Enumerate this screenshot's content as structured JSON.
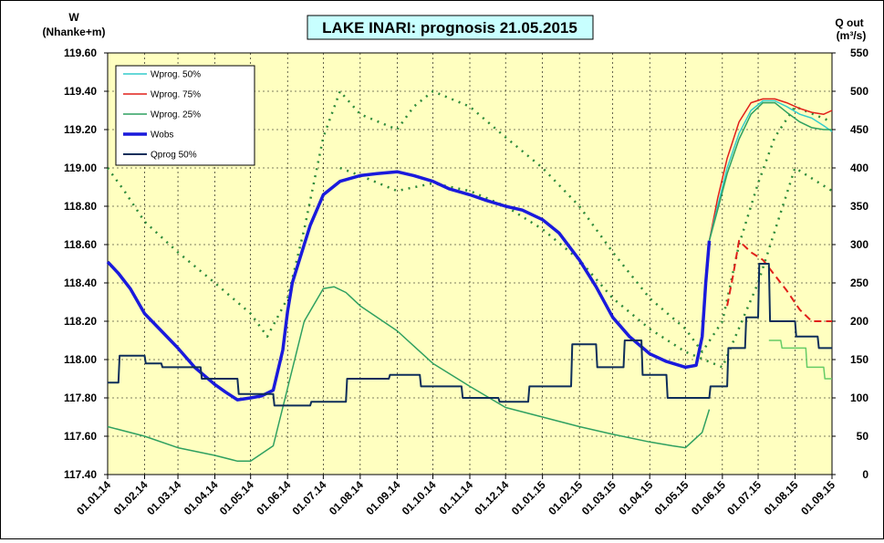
{
  "chart_data": {
    "type": "line",
    "title": "LAKE INARI: prognosis 21.05.2015",
    "left_axis": {
      "label_line1": "W",
      "label_line2": "(Nhanke+m)",
      "min": 117.4,
      "max": 119.6,
      "step": 0.2,
      "ticks": [
        "117.40",
        "117.60",
        "117.80",
        "118.00",
        "118.20",
        "118.40",
        "118.60",
        "118.80",
        "119.00",
        "119.20",
        "119.40",
        "119.60"
      ]
    },
    "right_axis": {
      "label_line1": "Q out",
      "label_line2": "(m³/s)",
      "min": 0,
      "max": 550,
      "step": 50,
      "ticks": [
        "0",
        "50",
        "100",
        "150",
        "200",
        "250",
        "300",
        "350",
        "400",
        "450",
        "500",
        "550"
      ]
    },
    "x_axis": {
      "start": "2014-01-01",
      "end": "2015-09-01",
      "ticks": [
        "01.01.14",
        "01.02.14",
        "01.03.14",
        "01.04.14",
        "01.05.14",
        "01.06.14",
        "01.07.14",
        "01.08.14",
        "01.09.14",
        "01.10.14",
        "01.11.14",
        "01.12.14",
        "01.01.15",
        "01.02.15",
        "01.03.15",
        "01.04.15",
        "01.05.15",
        "01.06.15",
        "01.07.15",
        "01.08.15",
        "01.09.15"
      ]
    },
    "grid": true,
    "legend_position": "top-left",
    "legend": [
      {
        "name": "Wprog. 50%",
        "color": "#33cccc",
        "width": 1.5,
        "dash": ""
      },
      {
        "name": "Wprog. 75%",
        "color": "#e0201a",
        "width": 1.5,
        "dash": ""
      },
      {
        "name": "Wprog. 25%",
        "color": "#2fa060",
        "width": 1.5,
        "dash": ""
      },
      {
        "name": "Wobs",
        "color": "#1a1adc",
        "width": 3.5,
        "dash": ""
      },
      {
        "name": "Qprog 50%",
        "color": "#0e2e5a",
        "width": 2,
        "dash": ""
      }
    ],
    "series": [
      {
        "name": "Wobs",
        "axis": "left",
        "color": "#1a1adc",
        "width": 3.5,
        "dash": "",
        "x": [
          "2014-01-01",
          "2014-01-10",
          "2014-01-20",
          "2014-02-01",
          "2014-02-15",
          "2014-03-01",
          "2014-03-15",
          "2014-04-01",
          "2014-04-10",
          "2014-04-20",
          "2014-05-01",
          "2014-05-10",
          "2014-05-20",
          "2014-05-28",
          "2014-06-01",
          "2014-06-05",
          "2014-06-10",
          "2014-06-20",
          "2014-07-01",
          "2014-07-15",
          "2014-08-01",
          "2014-08-15",
          "2014-09-01",
          "2014-09-15",
          "2014-10-01",
          "2014-10-15",
          "2014-11-01",
          "2014-11-15",
          "2014-12-01",
          "2014-12-15",
          "2015-01-01",
          "2015-01-15",
          "2015-02-01",
          "2015-02-15",
          "2015-03-01",
          "2015-03-15",
          "2015-04-01",
          "2015-04-15",
          "2015-05-01",
          "2015-05-10",
          "2015-05-15",
          "2015-05-18",
          "2015-05-21"
        ],
        "y": [
          118.51,
          118.45,
          118.37,
          118.24,
          118.15,
          118.06,
          117.96,
          117.87,
          117.83,
          117.79,
          117.8,
          117.81,
          117.84,
          118.05,
          118.25,
          118.4,
          118.5,
          118.7,
          118.86,
          118.93,
          118.96,
          118.97,
          118.98,
          118.96,
          118.93,
          118.89,
          118.86,
          118.83,
          118.8,
          118.78,
          118.73,
          118.66,
          118.52,
          118.38,
          118.22,
          118.12,
          118.03,
          117.99,
          117.96,
          117.97,
          118.12,
          118.4,
          118.62
        ]
      },
      {
        "name": "Wprog. 50%",
        "axis": "left",
        "color": "#33cccc",
        "width": 1.5,
        "dash": "",
        "x": [
          "2015-05-21",
          "2015-05-28",
          "2015-06-05",
          "2015-06-15",
          "2015-06-25",
          "2015-07-05",
          "2015-07-15",
          "2015-07-25",
          "2015-08-05",
          "2015-08-15",
          "2015-08-25",
          "2015-09-01"
        ],
        "y": [
          118.62,
          118.8,
          119.0,
          119.18,
          119.3,
          119.35,
          119.35,
          119.32,
          119.28,
          119.26,
          119.22,
          119.19
        ]
      },
      {
        "name": "Wprog. 75%",
        "axis": "left",
        "color": "#e0201a",
        "width": 1.5,
        "dash": "",
        "x": [
          "2015-05-21",
          "2015-05-28",
          "2015-06-05",
          "2015-06-15",
          "2015-06-25",
          "2015-07-05",
          "2015-07-15",
          "2015-07-25",
          "2015-08-05",
          "2015-08-15",
          "2015-08-25",
          "2015-09-01"
        ],
        "y": [
          118.62,
          118.84,
          119.05,
          119.24,
          119.34,
          119.36,
          119.36,
          119.34,
          119.31,
          119.29,
          119.28,
          119.3
        ]
      },
      {
        "name": "Wprog. 25%",
        "axis": "left",
        "color": "#2fa060",
        "width": 1.5,
        "dash": "",
        "x": [
          "2015-05-21",
          "2015-05-28",
          "2015-06-05",
          "2015-06-15",
          "2015-06-25",
          "2015-07-05",
          "2015-07-15",
          "2015-07-25",
          "2015-08-05",
          "2015-08-15",
          "2015-08-25",
          "2015-09-01"
        ],
        "y": [
          118.62,
          118.78,
          118.97,
          119.15,
          119.28,
          119.34,
          119.34,
          119.29,
          119.24,
          119.21,
          119.2,
          119.2
        ]
      },
      {
        "name": "Wobs light",
        "axis": "left",
        "color": "#2fa060",
        "width": 1.5,
        "dash": "",
        "x": [
          "2014-01-01",
          "2014-02-01",
          "2014-03-01",
          "2014-04-01",
          "2014-04-20",
          "2014-05-01",
          "2014-05-20",
          "2014-06-01",
          "2014-06-15",
          "2014-07-01",
          "2014-07-10",
          "2014-07-20",
          "2014-08-01",
          "2014-09-01",
          "2014-10-01",
          "2014-11-01",
          "2014-12-01",
          "2015-01-01",
          "2015-02-01",
          "2015-03-01",
          "2015-04-01",
          "2015-04-20",
          "2015-05-01",
          "2015-05-15",
          "2015-05-21"
        ],
        "y": [
          117.65,
          117.6,
          117.54,
          117.5,
          117.47,
          117.47,
          117.55,
          117.85,
          118.2,
          118.37,
          118.38,
          118.35,
          118.28,
          118.15,
          117.98,
          117.86,
          117.75,
          117.7,
          117.65,
          117.61,
          117.57,
          117.55,
          117.54,
          117.62,
          117.74
        ]
      },
      {
        "name": "Q dotted",
        "axis": "right",
        "color": "#2d8a3a",
        "width": 2.5,
        "dash": "2 6",
        "x": [
          "2014-01-01",
          "2014-01-15",
          "2014-02-01",
          "2014-03-01",
          "2014-04-01",
          "2014-05-01",
          "2014-05-15",
          "2014-06-01",
          "2014-06-15",
          "2014-07-01",
          "2014-07-15",
          "2014-08-01",
          "2014-09-01",
          "2014-09-15",
          "2014-10-01",
          "2014-11-01",
          "2014-12-01",
          "2015-01-01",
          "2015-02-01",
          "2015-03-01",
          "2015-04-01",
          "2015-05-01",
          "2015-05-15",
          "2015-06-01",
          "2015-06-15",
          "2015-07-01",
          "2015-07-15",
          "2015-08-01",
          "2015-09-01"
        ],
        "y": [
          400,
          370,
          330,
          290,
          250,
          210,
          180,
          230,
          320,
          440,
          500,
          470,
          450,
          480,
          500,
          480,
          440,
          400,
          350,
          290,
          230,
          190,
          160,
          200,
          300,
          380,
          440,
          480,
          460
        ]
      },
      {
        "name": "Q dotted 2",
        "axis": "right",
        "color": "#2d8a3a",
        "width": 2.5,
        "dash": "2 6",
        "x": [
          "2014-07-15",
          "2014-08-01",
          "2014-09-01",
          "2014-10-01",
          "2014-11-01",
          "2014-12-01",
          "2015-01-01",
          "2015-02-01",
          "2015-03-01",
          "2015-04-01",
          "2015-05-01",
          "2015-06-01",
          "2015-07-01",
          "2015-08-01",
          "2015-09-01"
        ],
        "y": [
          400,
          390,
          370,
          380,
          370,
          350,
          320,
          280,
          230,
          190,
          160,
          140,
          250,
          400,
          370
        ]
      },
      {
        "name": "Qprog 50%",
        "axis": "right",
        "color": "#0e2e5a",
        "width": 2,
        "dash": "",
        "x": [
          "2014-01-01",
          "2014-01-10",
          "2014-01-11",
          "2014-02-01",
          "2014-02-02",
          "2014-02-15",
          "2014-02-16",
          "2014-03-20",
          "2014-03-21",
          "2014-04-20",
          "2014-04-21",
          "2014-05-20",
          "2014-05-21",
          "2014-06-20",
          "2014-06-21",
          "2014-07-20",
          "2014-07-21",
          "2014-08-25",
          "2014-08-26",
          "2014-09-20",
          "2014-09-21",
          "2014-10-25",
          "2014-10-26",
          "2014-11-25",
          "2014-11-26",
          "2014-12-20",
          "2014-12-21",
          "2015-01-25",
          "2015-01-26",
          "2015-02-15",
          "2015-02-16",
          "2015-03-10",
          "2015-03-11",
          "2015-03-25",
          "2015-03-26",
          "2015-04-15",
          "2015-04-16",
          "2015-05-21",
          "2015-05-22",
          "2015-06-05",
          "2015-06-06",
          "2015-06-20",
          "2015-06-21",
          "2015-07-01",
          "2015-07-02",
          "2015-07-10",
          "2015-07-11",
          "2015-08-01",
          "2015-08-02",
          "2015-08-20",
          "2015-08-21",
          "2015-09-01"
        ],
        "y": [
          120,
          120,
          155,
          155,
          145,
          145,
          140,
          140,
          125,
          125,
          105,
          105,
          90,
          90,
          95,
          95,
          125,
          125,
          130,
          130,
          115,
          115,
          100,
          100,
          95,
          95,
          115,
          115,
          170,
          170,
          140,
          140,
          175,
          175,
          130,
          130,
          100,
          100,
          115,
          115,
          165,
          165,
          205,
          205,
          275,
          275,
          200,
          200,
          180,
          180,
          165,
          165
        ]
      },
      {
        "name": "Q red dashed",
        "axis": "right",
        "color": "#e0201a",
        "width": 2,
        "dash": "8 5",
        "x": [
          "2015-06-05",
          "2015-06-10",
          "2015-06-15",
          "2015-06-25",
          "2015-07-05",
          "2015-07-15",
          "2015-07-25",
          "2015-08-05",
          "2015-08-15",
          "2015-09-01"
        ],
        "y": [
          220,
          260,
          305,
          290,
          280,
          260,
          240,
          215,
          200,
          200
        ]
      },
      {
        "name": "Q light green",
        "axis": "right",
        "color": "#66cc66",
        "width": 1.5,
        "dash": "",
        "x": [
          "2015-07-10",
          "2015-07-20",
          "2015-07-21",
          "2015-08-10",
          "2015-08-11",
          "2015-08-25",
          "2015-08-26",
          "2015-09-01"
        ],
        "y": [
          175,
          175,
          165,
          165,
          140,
          140,
          125,
          125
        ]
      }
    ]
  }
}
